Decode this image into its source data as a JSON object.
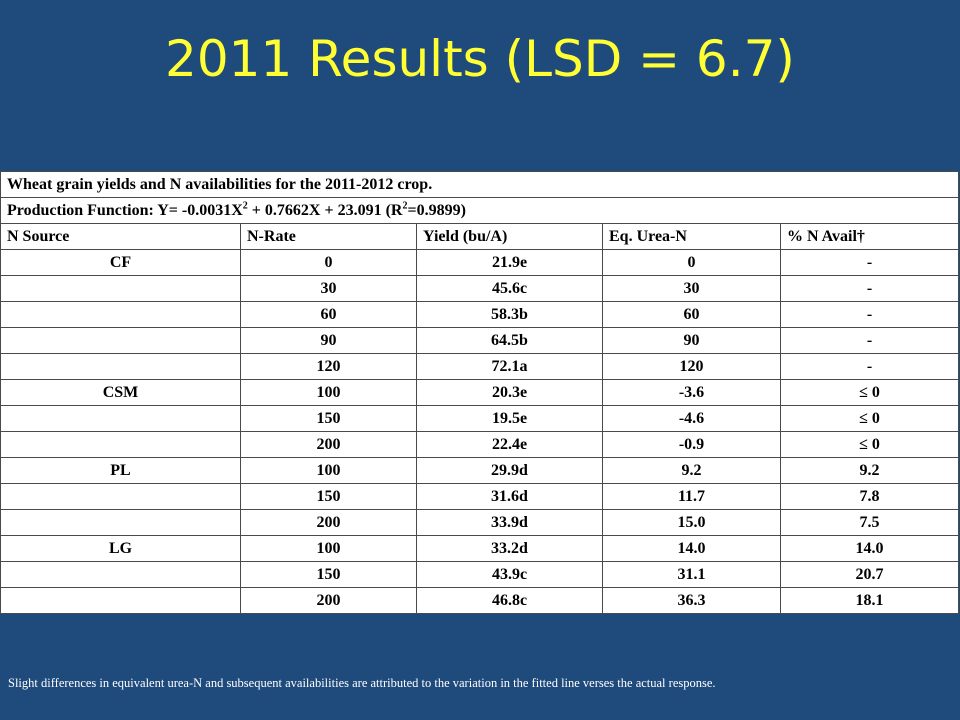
{
  "title": "2011 Results (LSD = 6.7)",
  "table": {
    "caption": "Wheat grain yields and N availabilities for the 2011-2012 crop.",
    "production_function": {
      "prefix": "Production Function:  Y= -0.0031X",
      "exp1": "2",
      "middle": " + 0.7662X + 23.091 (R",
      "exp2": "2",
      "suffix": "=0.9899)"
    },
    "headers": [
      "N Source",
      "N-Rate",
      "Yield (bu/A)",
      "Eq. Urea-N",
      "% N Avail†"
    ],
    "rows": [
      [
        "CF",
        "0",
        "21.9e",
        "0",
        "-"
      ],
      [
        "",
        "30",
        "45.6c",
        "30",
        "-"
      ],
      [
        "",
        "60",
        "58.3b",
        "60",
        "-"
      ],
      [
        "",
        "90",
        "64.5b",
        "90",
        "-"
      ],
      [
        "",
        "120",
        "72.1a",
        "120",
        "-"
      ],
      [
        "CSM",
        "100",
        "20.3e",
        "-3.6",
        "≤ 0"
      ],
      [
        "",
        "150",
        "19.5e",
        "-4.6",
        "≤ 0"
      ],
      [
        "",
        "200",
        "22.4e",
        "-0.9",
        "≤ 0"
      ],
      [
        "PL",
        "100",
        "29.9d",
        "9.2",
        "9.2"
      ],
      [
        "",
        "150",
        "31.6d",
        "11.7",
        "7.8"
      ],
      [
        "",
        "200",
        "33.9d",
        "15.0",
        "7.5"
      ],
      [
        "LG",
        "100",
        "33.2d",
        "14.0",
        "14.0"
      ],
      [
        "",
        "150",
        "43.9c",
        "31.1",
        "20.7"
      ],
      [
        "",
        "200",
        "46.8c",
        "36.3",
        "18.1"
      ]
    ]
  },
  "footnote": "Slight differences in equivalent urea-N and subsequent availabilities  are attributed to the variation in the fitted line verses the actual response."
}
